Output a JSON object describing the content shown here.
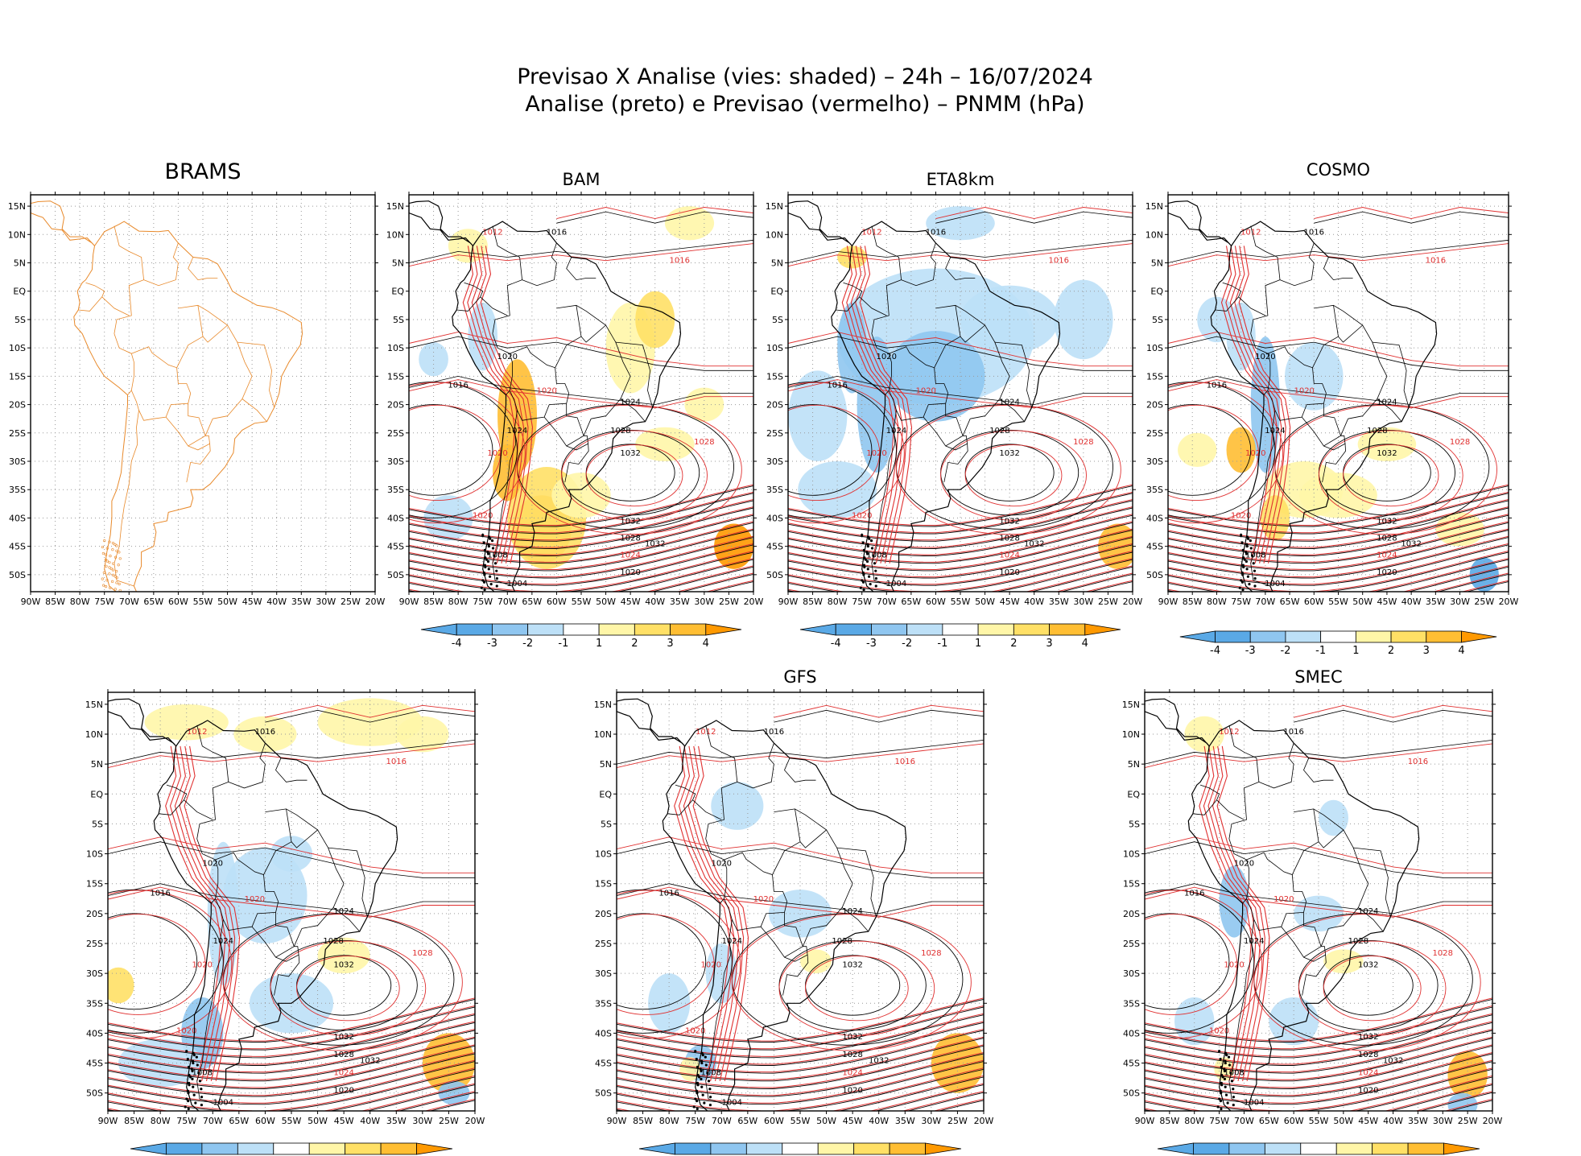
{
  "title": {
    "line1": "Previsao X Analise (vies: shaded) – 24h – 16/07/2024",
    "line2": "Analise (preto) e Previsao (vermelho) – PNMM (hPa)"
  },
  "map_extent": {
    "lon": [
      -90,
      -20
    ],
    "lat": [
      -53,
      17
    ]
  },
  "lon_ticks": [
    "90W",
    "85W",
    "80W",
    "75W",
    "70W",
    "65W",
    "60W",
    "55W",
    "50W",
    "45W",
    "40W",
    "35W",
    "30W",
    "25W",
    "20W"
  ],
  "lat_ticks": [
    "15N",
    "10N",
    "5N",
    "EQ",
    "5S",
    "10S",
    "15S",
    "20S",
    "25S",
    "30S",
    "35S",
    "40S",
    "45S",
    "50S"
  ],
  "colorbar": {
    "labels": [
      "-4",
      "-3",
      "-2",
      "-1",
      "1",
      "2",
      "3",
      "4"
    ],
    "colors": [
      "#5aa9e6",
      "#8fc6f0",
      "#bde0f7",
      "#ffffff",
      "#fff6a8",
      "#ffe066",
      "#ffbe33",
      "#ff9900"
    ]
  },
  "colors": {
    "analysis": "#000000",
    "forecast": "#e03030",
    "coast_brams": "#e8892a",
    "grid": "#9a9a9a"
  },
  "panels": [
    {
      "name": "BRAMS",
      "has_colorbar": false
    },
    {
      "name": "BAM",
      "has_colorbar": true
    },
    {
      "name": "ETA8km",
      "has_colorbar": true
    },
    {
      "name": "COSMO",
      "has_colorbar": true
    },
    {
      "name": "",
      "has_colorbar": true
    },
    {
      "name": "GFS",
      "has_colorbar": true
    },
    {
      "name": "SMEC",
      "has_colorbar": true
    }
  ],
  "isobar_labels": [
    "1004",
    "1008",
    "1012",
    "1016",
    "1020",
    "1024",
    "1028",
    "1032"
  ]
}
